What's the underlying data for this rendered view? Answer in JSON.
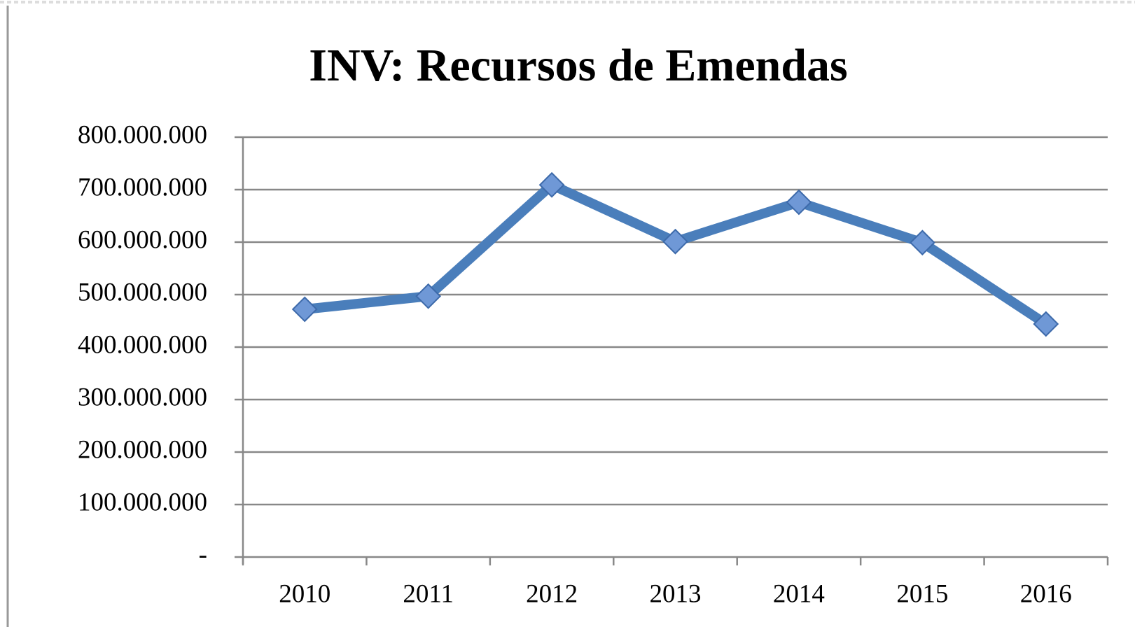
{
  "chart_data": {
    "type": "line",
    "title": "INV: Recursos de Emendas",
    "categories": [
      "2010",
      "2011",
      "2012",
      "2013",
      "2014",
      "2015",
      "2016"
    ],
    "series": [
      {
        "name": "INV",
        "color": "#4a7ebb",
        "values": [
          472000000,
          497000000,
          709000000,
          601000000,
          676000000,
          599000000,
          444000000
        ]
      }
    ],
    "ylim": [
      0,
      800000000
    ],
    "yticks": [
      {
        "value": 0,
        "label": "-"
      },
      {
        "value": 100000000,
        "label": "100.000.000"
      },
      {
        "value": 200000000,
        "label": "200.000.000"
      },
      {
        "value": 300000000,
        "label": "300.000.000"
      },
      {
        "value": 400000000,
        "label": "400.000.000"
      },
      {
        "value": 500000000,
        "label": "500.000.000"
      },
      {
        "value": 600000000,
        "label": "600.000.000"
      },
      {
        "value": 700000000,
        "label": "700.000.000"
      },
      {
        "value": 800000000,
        "label": "800.000.000"
      }
    ],
    "grid": true
  }
}
